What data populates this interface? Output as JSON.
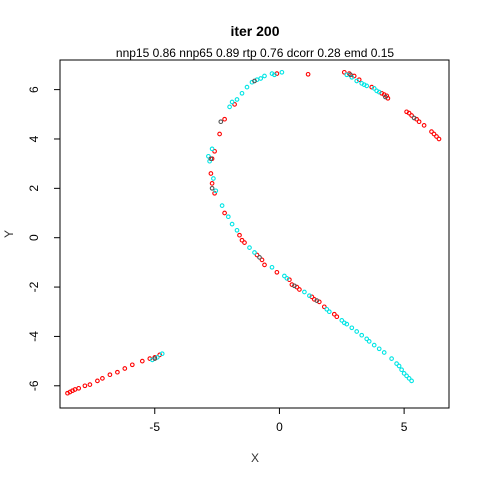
{
  "chart_data": {
    "type": "scatter",
    "title": "iter 200",
    "subtitle": "nnp15 0.86 nnp65 0.89 rtp 0.76 dcorr 0.28 emd 0.15",
    "xlabel": "X",
    "ylabel": "Y",
    "xlim": [
      -8.8,
      6.8
    ],
    "ylim": [
      -6.9,
      7.2
    ],
    "xticks": [
      -5,
      0,
      5
    ],
    "yticks": [
      -6,
      -4,
      -2,
      0,
      2,
      4,
      6
    ],
    "grid": false,
    "legend": "none",
    "colors": {
      "red": "#ff0000",
      "cyan": "#00e5e5",
      "dark": "#555555"
    },
    "series": [
      {
        "color": "red",
        "points": [
          [
            -8.5,
            -6.3
          ],
          [
            -8.4,
            -6.25
          ],
          [
            -8.3,
            -6.2
          ],
          [
            -8.2,
            -6.15
          ],
          [
            -8.05,
            -6.1
          ],
          [
            -7.8,
            -6.0
          ],
          [
            -7.6,
            -5.95
          ],
          [
            -7.3,
            -5.8
          ],
          [
            -7.1,
            -5.7
          ],
          [
            -6.8,
            -5.55
          ],
          [
            -6.5,
            -5.45
          ],
          [
            -6.2,
            -5.3
          ],
          [
            -5.9,
            -5.15
          ],
          [
            -5.5,
            -5.0
          ],
          [
            -5.2,
            -4.9
          ],
          [
            -5.0,
            -4.85
          ],
          [
            -4.8,
            -4.75
          ],
          [
            -2.6,
            3.5
          ],
          [
            -2.7,
            3.2
          ],
          [
            -2.75,
            2.6
          ],
          [
            -2.7,
            2.2
          ],
          [
            -2.6,
            1.8
          ],
          [
            -2.2,
            1.0
          ],
          [
            -1.6,
            0.1
          ],
          [
            -1.5,
            -0.1
          ],
          [
            -1.4,
            -0.2
          ],
          [
            -0.9,
            -0.7
          ],
          [
            -0.7,
            -0.9
          ],
          [
            -0.6,
            -1.1
          ],
          [
            -0.1,
            -1.4
          ],
          [
            0.4,
            -1.7
          ],
          [
            0.5,
            -1.9
          ],
          [
            0.7,
            -2.0
          ],
          [
            0.8,
            -2.1
          ],
          [
            1.3,
            -2.4
          ],
          [
            1.4,
            -2.5
          ],
          [
            1.6,
            -2.6
          ],
          [
            1.8,
            -2.8
          ],
          [
            2.2,
            -3.1
          ],
          [
            2.3,
            -3.2
          ],
          [
            -2.4,
            4.2
          ],
          [
            -2.2,
            4.8
          ],
          [
            -1.8,
            5.4
          ],
          [
            -0.1,
            6.65
          ],
          [
            1.15,
            6.62
          ],
          [
            2.6,
            6.7
          ],
          [
            2.8,
            6.65
          ],
          [
            3.0,
            6.55
          ],
          [
            3.2,
            6.4
          ],
          [
            3.7,
            6.1
          ],
          [
            4.1,
            5.85
          ],
          [
            4.2,
            5.8
          ],
          [
            4.3,
            5.75
          ],
          [
            4.35,
            5.65
          ],
          [
            5.1,
            5.1
          ],
          [
            5.2,
            5.05
          ],
          [
            5.3,
            4.95
          ],
          [
            5.5,
            4.8
          ],
          [
            5.6,
            4.7
          ],
          [
            5.8,
            4.55
          ],
          [
            6.1,
            4.3
          ],
          [
            6.2,
            4.2
          ],
          [
            6.3,
            4.1
          ],
          [
            6.4,
            4.0
          ]
        ]
      },
      {
        "color": "cyan",
        "points": [
          [
            -5.1,
            -4.95
          ],
          [
            -4.9,
            -4.85
          ],
          [
            -4.7,
            -4.7
          ],
          [
            -2.8,
            3.1
          ],
          [
            -2.7,
            3.6
          ],
          [
            -2.85,
            3.3
          ],
          [
            -2.65,
            2.4
          ],
          [
            -2.55,
            1.9
          ],
          [
            -2.3,
            1.3
          ],
          [
            -2.05,
            0.85
          ],
          [
            -1.9,
            0.55
          ],
          [
            -1.7,
            0.3
          ],
          [
            -1.2,
            -0.4
          ],
          [
            -1.0,
            -0.6
          ],
          [
            -0.3,
            -1.2
          ],
          [
            0.2,
            -1.55
          ],
          [
            0.3,
            -1.65
          ],
          [
            1.0,
            -2.2
          ],
          [
            1.2,
            -2.35
          ],
          [
            1.9,
            -2.9
          ],
          [
            2.0,
            -3.0
          ],
          [
            2.5,
            -3.35
          ],
          [
            2.6,
            -3.45
          ],
          [
            2.7,
            -3.5
          ],
          [
            2.9,
            -3.65
          ],
          [
            3.1,
            -3.8
          ],
          [
            3.3,
            -3.95
          ],
          [
            3.5,
            -4.1
          ],
          [
            3.6,
            -4.2
          ],
          [
            3.8,
            -4.35
          ],
          [
            4.0,
            -4.5
          ],
          [
            4.2,
            -4.65
          ],
          [
            4.5,
            -4.9
          ],
          [
            4.7,
            -5.1
          ],
          [
            4.8,
            -5.2
          ],
          [
            4.9,
            -5.35
          ],
          [
            5.0,
            -5.5
          ],
          [
            5.1,
            -5.6
          ],
          [
            5.2,
            -5.7
          ],
          [
            5.3,
            -5.8
          ],
          [
            -2.0,
            5.3
          ],
          [
            -1.9,
            5.5
          ],
          [
            -1.7,
            5.6
          ],
          [
            -1.5,
            5.85
          ],
          [
            -1.3,
            6.1
          ],
          [
            -1.1,
            6.3
          ],
          [
            -0.9,
            6.4
          ],
          [
            -0.75,
            6.45
          ],
          [
            -0.6,
            6.55
          ],
          [
            -0.3,
            6.65
          ],
          [
            -0.2,
            6.6
          ],
          [
            0.1,
            6.7
          ],
          [
            2.7,
            6.6
          ],
          [
            2.9,
            6.5
          ],
          [
            3.1,
            6.35
          ],
          [
            3.3,
            6.25
          ],
          [
            3.4,
            6.2
          ],
          [
            3.5,
            6.15
          ],
          [
            3.8,
            6.05
          ],
          [
            3.9,
            5.95
          ],
          [
            4.0,
            5.9
          ]
        ]
      },
      {
        "color": "dark",
        "points": [
          [
            -5.0,
            -4.9
          ],
          [
            -2.35,
            4.7
          ],
          [
            -2.75,
            3.2
          ],
          [
            -2.7,
            2.0
          ],
          [
            -0.8,
            -0.8
          ],
          [
            0.6,
            -1.95
          ],
          [
            1.5,
            -2.55
          ],
          [
            -1.0,
            6.35
          ],
          [
            2.85,
            6.6
          ],
          [
            4.25,
            5.7
          ],
          [
            5.4,
            4.85
          ]
        ]
      }
    ]
  }
}
